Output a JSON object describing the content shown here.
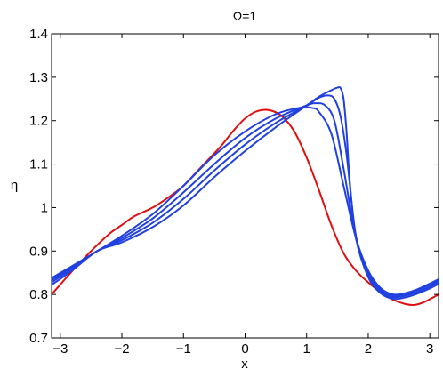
{
  "chart_data": {
    "type": "line",
    "title": "Ω=1",
    "xlabel": "x",
    "ylabel": "η",
    "xlim": [
      -3.14159,
      3.14159
    ],
    "ylim": [
      0.7,
      1.4
    ],
    "xticks": [
      -3,
      -2,
      -1,
      0,
      1,
      2,
      3
    ],
    "xtick_labels": [
      "−3",
      "−2",
      "−1",
      "0",
      "1",
      "2",
      "3"
    ],
    "yticks": [
      0.7,
      0.8,
      0.9,
      1.0,
      1.1,
      1.2,
      1.3,
      1.4
    ],
    "ytick_labels": [
      "0.7",
      "0.8",
      "0.9",
      "1",
      "1.1",
      "1.2",
      "1.3",
      "1.4"
    ],
    "grid": false,
    "series": [
      {
        "color": "#e01010",
        "x": [
          -3.1416,
          -2.8,
          -2.5,
          -2.2,
          -2.0,
          -1.8,
          -1.5,
          -1.2,
          -1.0,
          -0.7,
          -0.4,
          -0.2,
          0.0,
          0.2,
          0.4,
          0.6,
          0.8,
          1.0,
          1.2,
          1.4,
          1.6,
          1.8,
          2.0,
          2.2,
          2.4,
          2.6,
          2.75,
          2.9,
          3.1416
        ],
        "y": [
          0.8,
          0.855,
          0.9,
          0.94,
          0.96,
          0.98,
          1.0,
          1.028,
          1.05,
          1.095,
          1.14,
          1.175,
          1.205,
          1.222,
          1.224,
          1.21,
          1.175,
          1.115,
          1.04,
          0.96,
          0.895,
          0.855,
          0.828,
          0.805,
          0.788,
          0.778,
          0.776,
          0.782,
          0.8
        ]
      },
      {
        "color": "#2040e0",
        "x": [
          -3.1416,
          -2.8,
          -2.4,
          -2.0,
          -1.5,
          -1.0,
          -0.5,
          0.0,
          0.5,
          0.9,
          1.1,
          1.2,
          1.4,
          1.6,
          1.8,
          2.0,
          2.2,
          2.4,
          2.6,
          2.8,
          3.0,
          3.1416
        ],
        "y": [
          0.838,
          0.866,
          0.9,
          0.935,
          0.985,
          1.05,
          1.12,
          1.175,
          1.215,
          1.23,
          1.229,
          1.22,
          1.17,
          1.05,
          0.93,
          0.855,
          0.815,
          0.8,
          0.803,
          0.812,
          0.825,
          0.835
        ]
      },
      {
        "color": "#2040e0",
        "x": [
          -3.1416,
          -2.8,
          -2.4,
          -2.0,
          -1.5,
          -1.0,
          -0.5,
          0.0,
          0.5,
          1.0,
          1.15,
          1.3,
          1.45,
          1.6,
          1.8,
          2.0,
          2.2,
          2.4,
          2.6,
          2.8,
          3.0,
          3.1416
        ],
        "y": [
          0.833,
          0.863,
          0.9,
          0.93,
          0.975,
          1.035,
          1.1,
          1.16,
          1.205,
          1.235,
          1.24,
          1.235,
          1.2,
          1.09,
          0.93,
          0.85,
          0.81,
          0.797,
          0.8,
          0.81,
          0.822,
          0.832
        ]
      },
      {
        "color": "#2040e0",
        "x": [
          -3.1416,
          -2.8,
          -2.4,
          -2.0,
          -1.5,
          -1.0,
          -0.5,
          0.0,
          0.5,
          1.0,
          1.2,
          1.35,
          1.45,
          1.55,
          1.65,
          1.8,
          2.0,
          2.2,
          2.4,
          2.6,
          2.8,
          3.0,
          3.1416
        ],
        "y": [
          0.828,
          0.86,
          0.9,
          0.925,
          0.965,
          1.02,
          1.085,
          1.145,
          1.195,
          1.235,
          1.253,
          1.258,
          1.25,
          1.21,
          1.12,
          0.935,
          0.845,
          0.806,
          0.794,
          0.797,
          0.806,
          0.818,
          0.828
        ]
      },
      {
        "color": "#2040e0",
        "x": [
          -3.1416,
          -2.8,
          -2.4,
          -2.0,
          -1.5,
          -1.0,
          -0.5,
          0.0,
          0.5,
          1.0,
          1.2,
          1.4,
          1.5,
          1.55,
          1.6,
          1.65,
          1.7,
          1.8,
          2.0,
          2.2,
          2.4,
          2.6,
          2.8,
          3.0,
          3.1416
        ],
        "y": [
          0.822,
          0.856,
          0.9,
          0.92,
          0.955,
          1.005,
          1.07,
          1.13,
          1.185,
          1.235,
          1.255,
          1.27,
          1.276,
          1.275,
          1.25,
          1.17,
          1.06,
          0.93,
          0.84,
          0.803,
          0.79,
          0.793,
          0.802,
          0.814,
          0.824
        ]
      }
    ]
  }
}
